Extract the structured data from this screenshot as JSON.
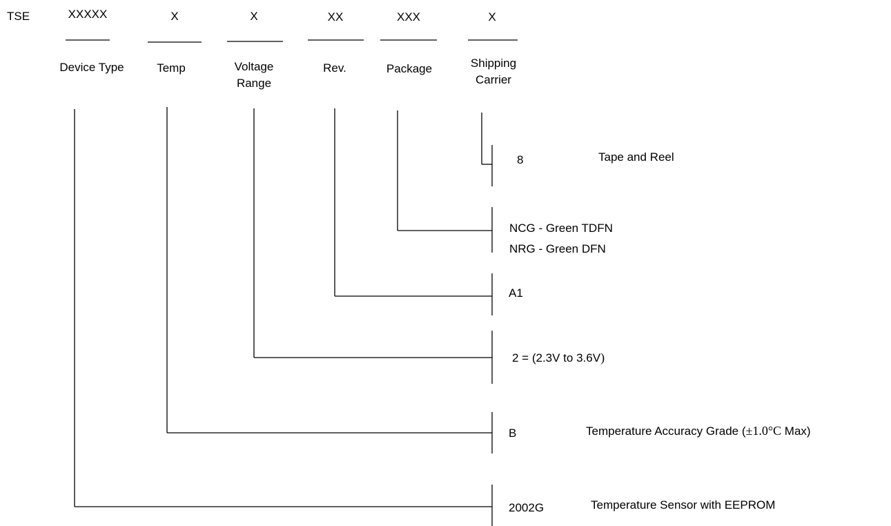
{
  "prefix": "TSE",
  "fields": [
    {
      "code": "XXXXX",
      "label": "Device Type"
    },
    {
      "code": "X",
      "label": "Temp"
    },
    {
      "code": "X",
      "label_line1": "Voltage",
      "label_line2": "Range"
    },
    {
      "code": "XX",
      "label": "Rev."
    },
    {
      "code": "XXX",
      "label": "Package"
    },
    {
      "code": "X",
      "label_line1": "Shipping",
      "label_line2": "Carrier"
    }
  ],
  "options": {
    "shipping": {
      "code": "8",
      "description": "Tape and Reel"
    },
    "package": {
      "line1": "NCG - Green TDFN",
      "line2": "NRG - Green DFN"
    },
    "revision": {
      "code": "A1"
    },
    "voltage": {
      "code": "2 = (2.3V to 3.6V",
      "close_paren": ")"
    },
    "temp": {
      "code": "B",
      "description": "Temperature Accuracy Grade (",
      "value": "±1.0°C",
      "suffix": " Max)"
    },
    "device": {
      "code": "2002G",
      "description": "Temperature Sensor with EEPROM"
    }
  }
}
